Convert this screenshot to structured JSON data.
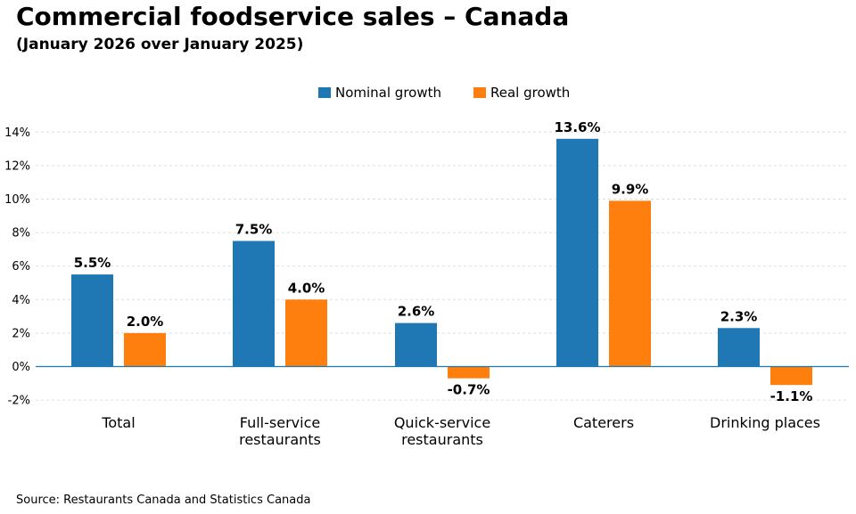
{
  "title": "Commercial foodservice sales – Canada",
  "subtitle": "(January 2026 over January 2025)",
  "source": "Source: Restaurants Canada and Statistics Canada",
  "colors": {
    "nominal": "#1f77b4",
    "real": "#ff7f0e",
    "zero_line": "#1f77b4",
    "grid": "#dddddd"
  },
  "chart_data": {
    "type": "bar",
    "categories": [
      [
        "Total"
      ],
      [
        "Full-service",
        "restaurants"
      ],
      [
        "Quick-service",
        "restaurants"
      ],
      [
        "Caterers"
      ],
      [
        "Drinking places"
      ]
    ],
    "series": [
      {
        "name": "Nominal growth",
        "values": [
          5.5,
          7.5,
          2.6,
          13.6,
          2.3
        ],
        "labels": [
          "5.5%",
          "7.5%",
          "2.6%",
          "13.6%",
          "2.3%"
        ]
      },
      {
        "name": "Real growth",
        "values": [
          2.0,
          4.0,
          -0.7,
          9.9,
          -1.1
        ],
        "labels": [
          "2.0%",
          "4.0%",
          "-0.7%",
          "9.9%",
          "-1.1%"
        ]
      }
    ],
    "yticks": [
      -2,
      0,
      2,
      4,
      6,
      8,
      10,
      12,
      14
    ],
    "ytick_labels": [
      "-2%",
      "0%",
      "2%",
      "4%",
      "6%",
      "8%",
      "10%",
      "12%",
      "14%"
    ],
    "ylim": [
      -2.5,
      15
    ],
    "grid": true,
    "legend_position": "top-center"
  }
}
